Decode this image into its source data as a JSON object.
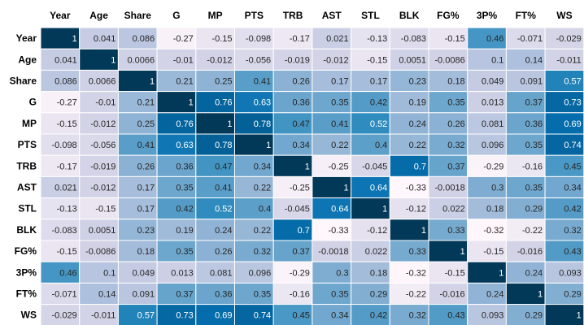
{
  "chart_data": {
    "type": "heatmap",
    "title": "",
    "xlabel": "",
    "ylabel": "",
    "categories": [
      "Year",
      "Age",
      "Share",
      "G",
      "MP",
      "PTS",
      "TRB",
      "AST",
      "STL",
      "BLK",
      "FG%",
      "3P%",
      "FT%",
      "WS"
    ],
    "value_labels": [
      [
        "1",
        "0.041",
        "0.086",
        "-0.27",
        "-0.15",
        "-0.098",
        "-0.17",
        "0.021",
        "-0.13",
        "-0.083",
        "-0.15",
        "0.46",
        "-0.071",
        "-0.029"
      ],
      [
        "0.041",
        "1",
        "0.0066",
        "-0.01",
        "-0.012",
        "-0.056",
        "-0.019",
        "-0.012",
        "-0.15",
        "0.0051",
        "-0.0086",
        "0.1",
        "0.14",
        "-0.011"
      ],
      [
        "0.086",
        "0.0066",
        "1",
        "0.21",
        "0.25",
        "0.41",
        "0.26",
        "0.17",
        "0.17",
        "0.23",
        "0.18",
        "0.049",
        "0.091",
        "0.57"
      ],
      [
        "-0.27",
        "-0.01",
        "0.21",
        "1",
        "0.76",
        "0.63",
        "0.36",
        "0.35",
        "0.42",
        "0.19",
        "0.35",
        "0.013",
        "0.37",
        "0.73"
      ],
      [
        "-0.15",
        "-0.012",
        "0.25",
        "0.76",
        "1",
        "0.78",
        "0.47",
        "0.41",
        "0.52",
        "0.24",
        "0.26",
        "0.081",
        "0.36",
        "0.69"
      ],
      [
        "-0.098",
        "-0.056",
        "0.41",
        "0.63",
        "0.78",
        "1",
        "0.34",
        "0.22",
        "0.4",
        "0.22",
        "0.32",
        "0.096",
        "0.35",
        "0.74"
      ],
      [
        "-0.17",
        "-0.019",
        "0.26",
        "0.36",
        "0.47",
        "0.34",
        "1",
        "-0.25",
        "-0.045",
        "0.7",
        "0.37",
        "-0.29",
        "-0.16",
        "0.45"
      ],
      [
        "0.021",
        "-0.012",
        "0.17",
        "0.35",
        "0.41",
        "0.22",
        "-0.25",
        "1",
        "0.64",
        "-0.33",
        "-0.0018",
        "0.3",
        "0.35",
        "0.34"
      ],
      [
        "-0.13",
        "-0.15",
        "0.17",
        "0.42",
        "0.52",
        "0.4",
        "-0.045",
        "0.64",
        "1",
        "-0.12",
        "0.022",
        "0.18",
        "0.29",
        "0.42"
      ],
      [
        "-0.083",
        "0.0051",
        "0.23",
        "0.19",
        "0.24",
        "0.22",
        "0.7",
        "-0.33",
        "-0.12",
        "1",
        "0.33",
        "-0.32",
        "-0.22",
        "0.32"
      ],
      [
        "-0.15",
        "-0.0086",
        "0.18",
        "0.35",
        "0.26",
        "0.32",
        "0.37",
        "-0.0018",
        "0.022",
        "0.33",
        "1",
        "-0.15",
        "-0.016",
        "0.43"
      ],
      [
        "0.46",
        "0.1",
        "0.049",
        "0.013",
        "0.081",
        "0.096",
        "-0.29",
        "0.3",
        "0.18",
        "-0.32",
        "-0.15",
        "1",
        "0.24",
        "0.093"
      ],
      [
        "-0.071",
        "0.14",
        "0.091",
        "0.37",
        "0.36",
        "0.35",
        "-0.16",
        "0.35",
        "0.29",
        "-0.22",
        "-0.016",
        "0.24",
        "1",
        "0.29"
      ],
      [
        "-0.029",
        "-0.011",
        "0.57",
        "0.73",
        "0.69",
        "0.74",
        "0.45",
        "0.34",
        "0.42",
        "0.32",
        "0.43",
        "0.093",
        "0.29",
        "1"
      ]
    ],
    "colormap": "PuBu",
    "value_range": [
      -0.33,
      1
    ],
    "grid": true,
    "legend": "none"
  }
}
